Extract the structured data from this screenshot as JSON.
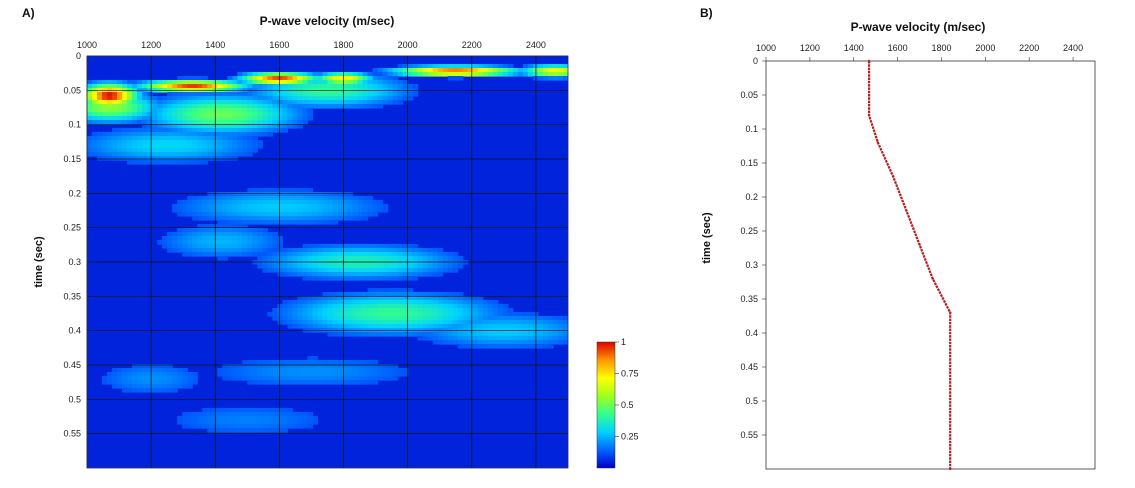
{
  "panels": {
    "a_label": "A)",
    "b_label": "B)"
  },
  "chart_data": [
    {
      "id": "A",
      "type": "heatmap",
      "title": "P-wave velocity (m/sec)",
      "xlabel": "P-wave velocity (m/sec)",
      "ylabel": "time (sec)",
      "xlim": [
        1000,
        2500
      ],
      "ylim": [
        0,
        0.6
      ],
      "y_inverted": true,
      "x_ticks": [
        "1000",
        "1200",
        "1400",
        "1600",
        "1800",
        "2000",
        "2200",
        "2400"
      ],
      "x_tick_values": [
        1000,
        1200,
        1400,
        1600,
        1800,
        2000,
        2200,
        2400
      ],
      "y_ticks": [
        "0",
        "0.05",
        "0.1",
        "0.15",
        "0.2",
        "0.25",
        "0.3",
        "0.35",
        "0.4",
        "0.45",
        "0.5",
        "0.55"
      ],
      "y_tick_values": [
        0,
        0.05,
        0.1,
        0.15,
        0.2,
        0.25,
        0.3,
        0.35,
        0.4,
        0.45,
        0.5,
        0.55
      ],
      "grid": true,
      "colorbar": {
        "range": [
          0,
          1
        ],
        "ticks": [
          "1",
          "0.75",
          "0.5",
          "0.25"
        ],
        "tick_values": [
          1,
          0.75,
          0.5,
          0.25
        ],
        "colors": [
          "#0000c8",
          "#0064ff",
          "#00d2ff",
          "#32ff8c",
          "#a0ff1e",
          "#ffff00",
          "#ff9600",
          "#dc0000"
        ]
      },
      "semblance_peaks": [
        {
          "velocity": 1070,
          "time": 0.058,
          "value": 1.0,
          "v_spread": 60,
          "t_spread": 0.012
        },
        {
          "velocity": 1070,
          "time": 0.075,
          "value": 0.55,
          "v_spread": 110,
          "t_spread": 0.015
        },
        {
          "velocity": 1330,
          "time": 0.044,
          "value": 0.95,
          "v_spread": 110,
          "t_spread": 0.006
        },
        {
          "velocity": 1420,
          "time": 0.085,
          "value": 0.5,
          "v_spread": 170,
          "t_spread": 0.02
        },
        {
          "velocity": 1600,
          "time": 0.033,
          "value": 0.95,
          "v_spread": 80,
          "t_spread": 0.006
        },
        {
          "velocity": 1800,
          "time": 0.033,
          "value": 0.75,
          "v_spread": 60,
          "t_spread": 0.006
        },
        {
          "velocity": 1750,
          "time": 0.05,
          "value": 0.42,
          "v_spread": 180,
          "t_spread": 0.018
        },
        {
          "velocity": 2150,
          "time": 0.022,
          "value": 0.92,
          "v_spread": 130,
          "t_spread": 0.005
        },
        {
          "velocity": 2460,
          "time": 0.022,
          "value": 0.72,
          "v_spread": 70,
          "t_spread": 0.006
        },
        {
          "velocity": 1250,
          "time": 0.13,
          "value": 0.3,
          "v_spread": 220,
          "t_spread": 0.02
        },
        {
          "velocity": 1600,
          "time": 0.22,
          "value": 0.28,
          "v_spread": 260,
          "t_spread": 0.02
        },
        {
          "velocity": 1850,
          "time": 0.3,
          "value": 0.38,
          "v_spread": 220,
          "t_spread": 0.018
        },
        {
          "velocity": 1420,
          "time": 0.27,
          "value": 0.25,
          "v_spread": 160,
          "t_spread": 0.02
        },
        {
          "velocity": 1950,
          "time": 0.375,
          "value": 0.42,
          "v_spread": 240,
          "t_spread": 0.022
        },
        {
          "velocity": 2300,
          "time": 0.4,
          "value": 0.28,
          "v_spread": 220,
          "t_spread": 0.02
        },
        {
          "velocity": 1700,
          "time": 0.46,
          "value": 0.2,
          "v_spread": 300,
          "t_spread": 0.02
        },
        {
          "velocity": 1200,
          "time": 0.47,
          "value": 0.2,
          "v_spread": 150,
          "t_spread": 0.02
        },
        {
          "velocity": 1500,
          "time": 0.53,
          "value": 0.18,
          "v_spread": 250,
          "t_spread": 0.02
        }
      ]
    },
    {
      "id": "B",
      "type": "line",
      "title": "P-wave velocity (m/sec)",
      "xlabel": "P-wave velocity (m/sec)",
      "ylabel": "time (sec)",
      "xlim": [
        1000,
        2500
      ],
      "ylim": [
        0,
        0.6
      ],
      "y_inverted": true,
      "x_ticks": [
        "1000",
        "1200",
        "1400",
        "1600",
        "1800",
        "2000",
        "2200",
        "2400"
      ],
      "x_tick_values": [
        1000,
        1200,
        1400,
        1600,
        1800,
        2000,
        2200,
        2400
      ],
      "y_ticks": [
        "0",
        "0.05",
        "0.1",
        "0.15",
        "0.2",
        "0.25",
        "0.3",
        "0.35",
        "0.4",
        "0.45",
        "0.5",
        "0.55"
      ],
      "y_tick_values": [
        0,
        0.05,
        0.1,
        0.15,
        0.2,
        0.25,
        0.3,
        0.35,
        0.4,
        0.45,
        0.5,
        0.55
      ],
      "grid": false,
      "series": [
        {
          "color": "#b22222",
          "points": [
            {
              "v": 1470,
              "t": 0.0
            },
            {
              "v": 1470,
              "t": 0.08
            },
            {
              "v": 1510,
              "t": 0.12
            },
            {
              "v": 1580,
              "t": 0.17
            },
            {
              "v": 1640,
              "t": 0.22
            },
            {
              "v": 1700,
              "t": 0.27
            },
            {
              "v": 1760,
              "t": 0.32
            },
            {
              "v": 1840,
              "t": 0.37
            },
            {
              "v": 1840,
              "t": 0.6
            }
          ]
        }
      ]
    }
  ]
}
